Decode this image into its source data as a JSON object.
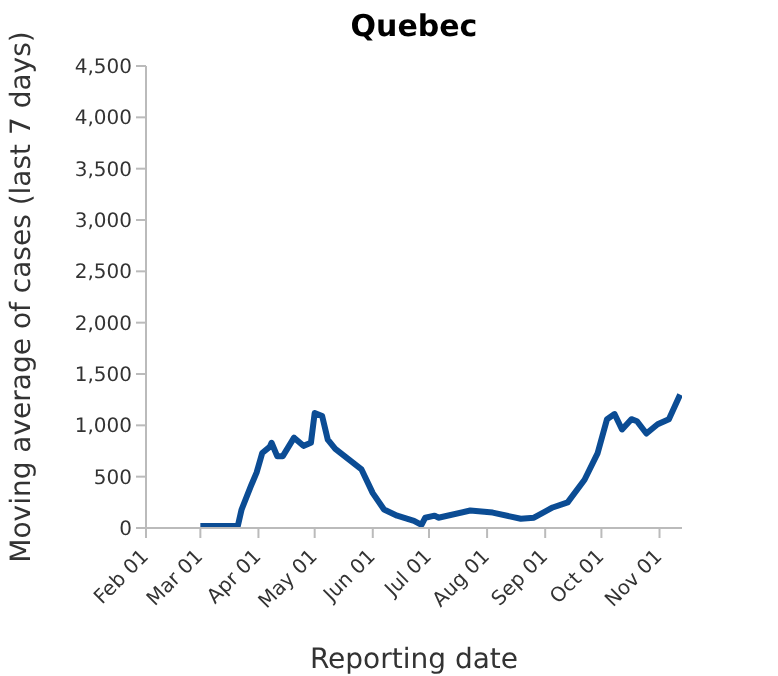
{
  "chart_data": {
    "type": "line",
    "title": "Quebec",
    "xlabel": "Reporting date",
    "ylabel": "Moving average of cases (last 7 days)",
    "x": [
      "--03-01",
      "--03-21",
      "--03-23",
      "--03-28",
      "--03-31",
      "--04-03",
      "--04-07",
      "--04-08",
      "--04-11",
      "--04-14",
      "--04-20",
      "--04-25",
      "--04-29",
      "--05-01",
      "--05-05",
      "--05-08",
      "--05-12",
      "--05-19",
      "--05-26",
      "--06-01",
      "--06-07",
      "--06-14",
      "--06-23",
      "--06-27",
      "--06-29",
      "--07-04",
      "--07-06",
      "--07-23",
      "--08-04",
      "--08-19",
      "--08-26",
      "--09-05",
      "--09-13",
      "--09-22",
      "--09-29",
      "--10-04",
      "--10-08",
      "--10-12",
      "--10-17",
      "--10-20",
      "--10-25",
      "--10-31",
      "--11-06",
      "--11-12"
    ],
    "series": [
      {
        "color": "#0b4c94",
        "values": [
          20,
          20,
          180,
          410,
          540,
          730,
          790,
          830,
          700,
          700,
          880,
          800,
          830,
          1120,
          1090,
          860,
          770,
          670,
          570,
          340,
          180,
          120,
          70,
          30,
          100,
          120,
          100,
          170,
          150,
          90,
          100,
          200,
          250,
          470,
          730,
          1060,
          1110,
          960,
          1060,
          1040,
          920,
          1010,
          1060,
          1300
        ]
      }
    ],
    "xlim": [
      "--02-01",
      "--11-13"
    ],
    "xticks": [
      {
        "value": "--02-01",
        "label": "Feb 01"
      },
      {
        "value": "--03-01",
        "label": "Mar 01"
      },
      {
        "value": "--04-01",
        "label": "Apr 01"
      },
      {
        "value": "--05-01",
        "label": "May 01"
      },
      {
        "value": "--06-01",
        "label": "Jun 01"
      },
      {
        "value": "--07-01",
        "label": "Jul 01"
      },
      {
        "value": "--08-01",
        "label": "Aug 01"
      },
      {
        "value": "--09-01",
        "label": "Sep 01"
      },
      {
        "value": "--10-01",
        "label": "Oct 01"
      },
      {
        "value": "--11-01",
        "label": "Nov 01"
      }
    ],
    "ylim": [
      0,
      4500
    ],
    "yticks": [
      {
        "value": 0,
        "label": "0"
      },
      {
        "value": 500,
        "label": "500"
      },
      {
        "value": 1000,
        "label": "1,000"
      },
      {
        "value": 1500,
        "label": "1,500"
      },
      {
        "value": 2000,
        "label": "2,000"
      },
      {
        "value": 2500,
        "label": "2,500"
      },
      {
        "value": 3000,
        "label": "3,000"
      },
      {
        "value": 3500,
        "label": "3,500"
      },
      {
        "value": 4000,
        "label": "4,000"
      },
      {
        "value": 4500,
        "label": "4,500"
      }
    ],
    "grid": false,
    "legend": false,
    "marker": "none",
    "line_style": "solid"
  }
}
